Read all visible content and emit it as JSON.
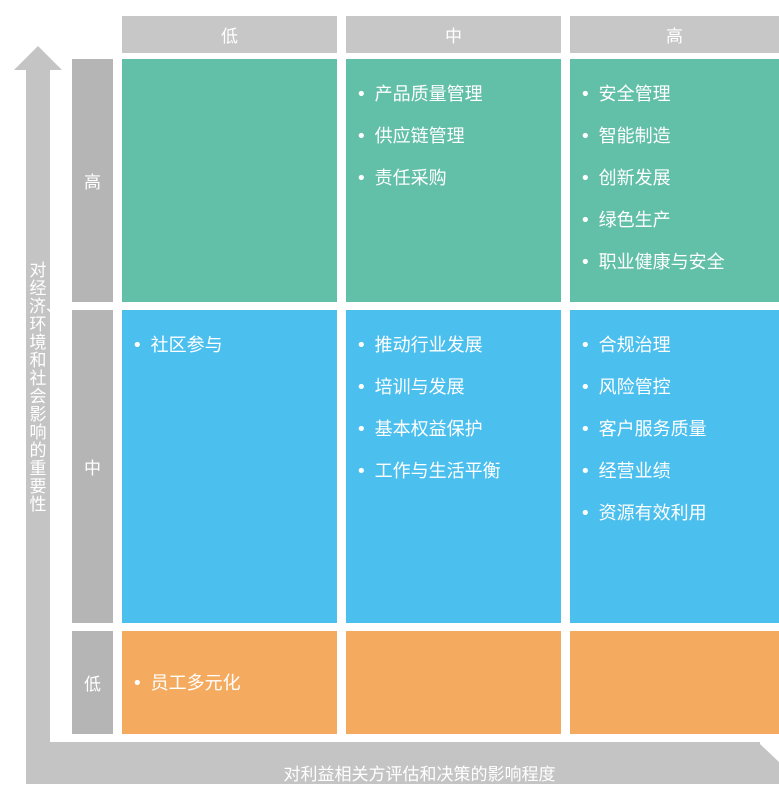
{
  "columns": [
    "低",
    "中",
    "高"
  ],
  "rows": [
    "高",
    "中",
    "低"
  ],
  "y_axis_label": "对经济、环境和社会影响的重要性",
  "x_axis_label": "对利益相关方评估和决策的影响程度",
  "cells": {
    "high_low": [],
    "high_mid": [
      "产品质量管理",
      "供应链管理",
      "责任采购"
    ],
    "high_high": [
      "安全管理",
      "智能制造",
      "创新发展",
      "绿色生产",
      "职业健康与安全"
    ],
    "mid_low": [
      "社区参与"
    ],
    "mid_mid": [
      "推动行业发展",
      "培训与发展",
      "基本权益保护",
      "工作与生活平衡"
    ],
    "mid_high": [
      "合规治理",
      "风险管控",
      "客户服务质量",
      "经营业绩",
      "资源有效利用"
    ],
    "low_low": [
      "员工多元化"
    ],
    "low_mid": [],
    "low_high": []
  },
  "colors": {
    "high": "#62bfa8",
    "mid": "#4bbfee",
    "low": "#f5ab5f",
    "header": "#c7c7c7",
    "row_label": "#b5b5b5",
    "axis": "#c4c4c4"
  }
}
